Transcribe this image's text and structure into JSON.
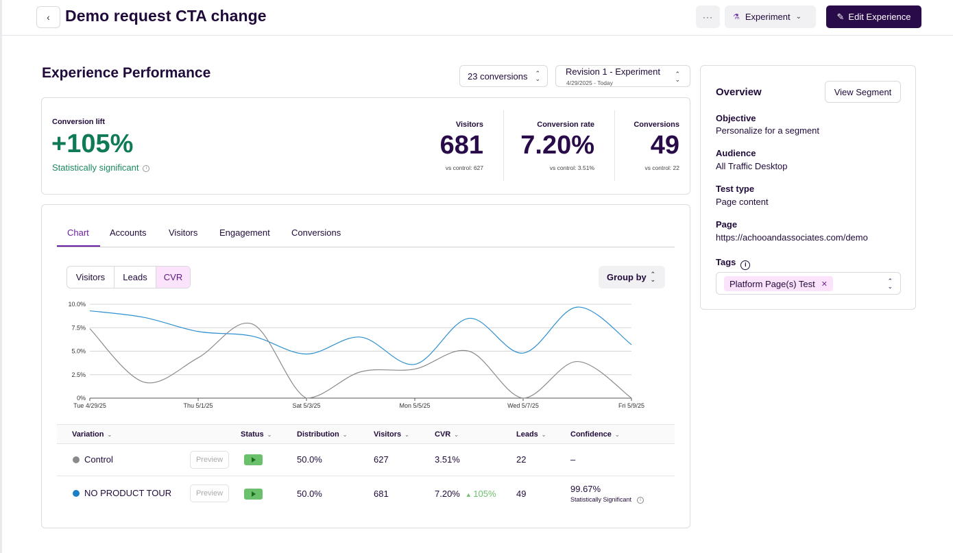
{
  "header": {
    "back_glyph": "‹",
    "title": "Demo request CTA change",
    "more_label": "···",
    "experiment_label": "Experiment",
    "edit_label": "Edit Experience"
  },
  "performance": {
    "title": "Experience Performance",
    "conversions_select": "23 conversions",
    "revision_select": "Revision 1 - Experiment",
    "revision_dates": "4/29/2025 - Today"
  },
  "stats": {
    "lift_label": "Conversion lift",
    "lift_value": "+105%",
    "lift_status": "Statistically significant",
    "metrics": [
      {
        "label": "Visitors",
        "value": "681",
        "sub": "vs control: 627"
      },
      {
        "label": "Conversion rate",
        "value": "7.20%",
        "sub": "vs control: 3.51%"
      },
      {
        "label": "Conversions",
        "value": "49",
        "sub": "vs control: 22"
      }
    ]
  },
  "tabs": [
    "Chart",
    "Accounts",
    "Visitors",
    "Engagement",
    "Conversions"
  ],
  "active_tab": "Chart",
  "metric_toggle": [
    "Visitors",
    "Leads",
    "CVR"
  ],
  "active_metric": "CVR",
  "group_by_label": "Group by",
  "chart_data": {
    "type": "line",
    "y_tick_labels": [
      "10.0%",
      "7.5%",
      "5.0%",
      "2.5%",
      "0%"
    ],
    "ylim": [
      0,
      10
    ],
    "x_tick_labels": [
      "Tue 4/29/25",
      "Thu 5/1/25",
      "Sat 5/3/25",
      "Mon 5/5/25",
      "Wed 5/7/25",
      "Fri 5/9/25"
    ],
    "x_index_range": [
      0,
      10
    ],
    "grid": true,
    "series": [
      {
        "color": "#2a8fd0",
        "points": [
          [
            0,
            9.3
          ],
          [
            1,
            8.6
          ],
          [
            2,
            7.1
          ],
          [
            3,
            6.6
          ],
          [
            4,
            4.7
          ],
          [
            5,
            6.5
          ],
          [
            6,
            3.6
          ],
          [
            7,
            8.5
          ],
          [
            8,
            4.8
          ],
          [
            9,
            9.7
          ],
          [
            10,
            5.7
          ]
        ]
      },
      {
        "color": "#8a8a8a",
        "points": [
          [
            0,
            7.4
          ],
          [
            1,
            1.7
          ],
          [
            2,
            4.3
          ],
          [
            3,
            7.9
          ],
          [
            4,
            0.0
          ],
          [
            5,
            2.8
          ],
          [
            6,
            3.1
          ],
          [
            7,
            5.0
          ],
          [
            8,
            0.0
          ],
          [
            9,
            3.9
          ],
          [
            10,
            0.0
          ]
        ]
      }
    ]
  },
  "table": {
    "columns": [
      "Variation",
      "Status",
      "Distribution",
      "Visitors",
      "CVR",
      "Leads",
      "Confidence"
    ],
    "rows": [
      {
        "color": "#8a8a8a",
        "name": "Control",
        "preview": "Preview",
        "distribution": "50.0%",
        "visitors": "627",
        "cvr": "3.51%",
        "lift": "",
        "leads": "22",
        "confidence": "–",
        "confidence_sub": ""
      },
      {
        "color": "#1a7fc4",
        "name": "NO PRODUCT TOUR",
        "preview": "Preview",
        "distribution": "50.0%",
        "visitors": "681",
        "cvr": "7.20%",
        "lift": "105%",
        "leads": "49",
        "confidence": "99.67%",
        "confidence_sub": "Statistically Significant"
      }
    ]
  },
  "overview": {
    "title": "Overview",
    "view_segment_label": "View Segment",
    "fields": [
      {
        "label": "Objective",
        "value": "Personalize for a segment"
      },
      {
        "label": "Audience",
        "value": "All Traffic Desktop"
      },
      {
        "label": "Test type",
        "value": "Page content"
      },
      {
        "label": "Page",
        "value": "https://achooandassociates.com/demo"
      }
    ],
    "tags_label": "Tags",
    "tags": [
      "Platform Page(s) Test"
    ]
  }
}
